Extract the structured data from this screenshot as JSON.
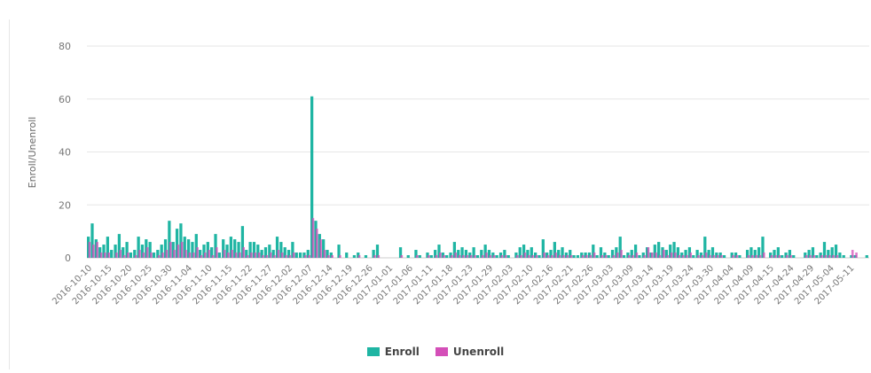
{
  "chart_data": {
    "type": "bar",
    "ylabel": "Enroll/Unenroll",
    "ylim": [
      0,
      80
    ],
    "yticks": [
      0,
      20,
      40,
      60,
      80
    ],
    "grid": true,
    "legend_position": "bottom",
    "series": [
      {
        "name": "Enroll",
        "color": "#1fb5a3",
        "values": [
          8,
          13,
          7,
          4,
          5,
          8,
          3,
          5,
          9,
          4,
          6,
          2,
          3,
          8,
          5,
          7,
          6,
          2,
          3,
          5,
          7,
          14,
          6,
          11,
          13,
          8,
          7,
          6,
          9,
          3,
          5,
          6,
          4,
          9,
          2,
          7,
          5,
          8,
          7,
          6,
          12,
          3,
          6,
          6,
          5,
          3,
          4,
          5,
          3,
          8,
          6,
          4,
          3,
          6,
          2,
          2,
          2,
          3,
          61,
          14,
          9,
          7,
          3,
          2,
          0,
          5,
          0,
          2,
          0,
          1,
          2,
          0,
          1,
          0,
          3,
          5,
          0,
          0,
          0,
          0,
          0,
          4,
          0,
          1,
          0,
          3,
          1,
          0,
          2,
          1,
          3,
          5,
          2,
          1,
          2,
          6,
          3,
          4,
          3,
          2,
          4,
          1,
          3,
          5,
          3,
          2,
          1,
          2,
          3,
          1,
          0,
          2,
          4,
          5,
          3,
          4,
          2,
          1,
          7,
          2,
          3,
          6,
          3,
          4,
          2,
          3,
          1,
          1,
          2,
          2,
          2,
          5,
          1,
          4,
          2,
          1,
          3,
          4,
          8,
          1,
          2,
          3,
          5,
          1,
          2,
          4,
          2,
          5,
          6,
          4,
          3,
          5,
          6,
          4,
          2,
          3,
          4,
          1,
          3,
          2,
          8,
          3,
          4,
          2,
          2,
          1,
          0,
          2,
          2,
          1,
          0,
          3,
          4,
          3,
          4,
          8,
          0,
          2,
          3,
          4,
          1,
          2,
          3,
          1,
          0,
          0,
          2,
          3,
          4,
          1,
          2,
          6,
          3,
          4,
          5,
          2,
          1,
          0,
          1,
          1,
          0,
          0,
          1
        ],
        "tick_labels": [
          "2016-10-10",
          "2016-10-15",
          "2016-10-20",
          "2016-10-25",
          "2016-10-30",
          "2016-11-04",
          "2016-11-10",
          "2016-11-15",
          "2016-11-22",
          "2016-11-27",
          "2016-12-02",
          "2016-12-07",
          "2016-12-14",
          "2016-12-19",
          "2016-12-26",
          "2017-01-01",
          "2017-01-06",
          "2017-01-11",
          "2017-01-18",
          "2017-01-23",
          "2017-01-29",
          "2017-02-03",
          "2017-02-10",
          "2017-02-16",
          "2017-02-21",
          "2017-02-26",
          "2017-03-03",
          "2017-03-09",
          "2017-03-14",
          "2017-03-19",
          "2017-03-24",
          "2017-03-30",
          "2017-04-04",
          "2017-04-09",
          "2017-04-15",
          "2017-04-24",
          "2017-04-29",
          "2017-05-04",
          "2017-05-11"
        ]
      },
      {
        "name": "Unenroll",
        "color": "#d44fb8",
        "values": [
          6,
          5,
          6,
          2,
          2,
          2,
          0,
          2,
          3,
          1,
          2,
          0,
          1,
          3,
          2,
          4,
          2,
          0,
          1,
          2,
          3,
          6,
          3,
          5,
          6,
          3,
          2,
          2,
          4,
          1,
          2,
          3,
          1,
          4,
          0,
          3,
          2,
          3,
          2,
          2,
          4,
          1,
          2,
          2,
          2,
          1,
          1,
          2,
          1,
          3,
          2,
          1,
          1,
          2,
          0,
          0,
          1,
          1,
          15,
          11,
          7,
          3,
          1,
          1,
          0,
          1,
          0,
          0,
          0,
          0,
          1,
          0,
          0,
          0,
          1,
          1,
          0,
          0,
          0,
          0,
          0,
          1,
          0,
          0,
          0,
          1,
          0,
          0,
          1,
          0,
          1,
          2,
          1,
          0,
          1,
          2,
          1,
          1,
          1,
          1,
          1,
          0,
          1,
          2,
          1,
          1,
          0,
          1,
          1,
          0,
          0,
          1,
          1,
          2,
          1,
          1,
          1,
          0,
          2,
          1,
          1,
          2,
          1,
          1,
          1,
          1,
          0,
          0,
          1,
          1,
          1,
          2,
          0,
          1,
          1,
          0,
          1,
          2,
          3,
          0,
          1,
          1,
          2,
          0,
          1,
          4,
          2,
          2,
          1,
          3,
          1,
          2,
          2,
          1,
          1,
          1,
          2,
          0,
          1,
          1,
          2,
          1,
          1,
          1,
          1,
          0,
          0,
          1,
          1,
          0,
          0,
          1,
          1,
          1,
          1,
          2,
          0,
          1,
          1,
          1,
          0,
          1,
          1,
          0,
          0,
          0,
          1,
          1,
          1,
          0,
          1,
          1,
          1,
          1,
          1,
          0,
          0,
          0,
          3,
          2,
          0,
          0,
          0
        ]
      }
    ]
  }
}
